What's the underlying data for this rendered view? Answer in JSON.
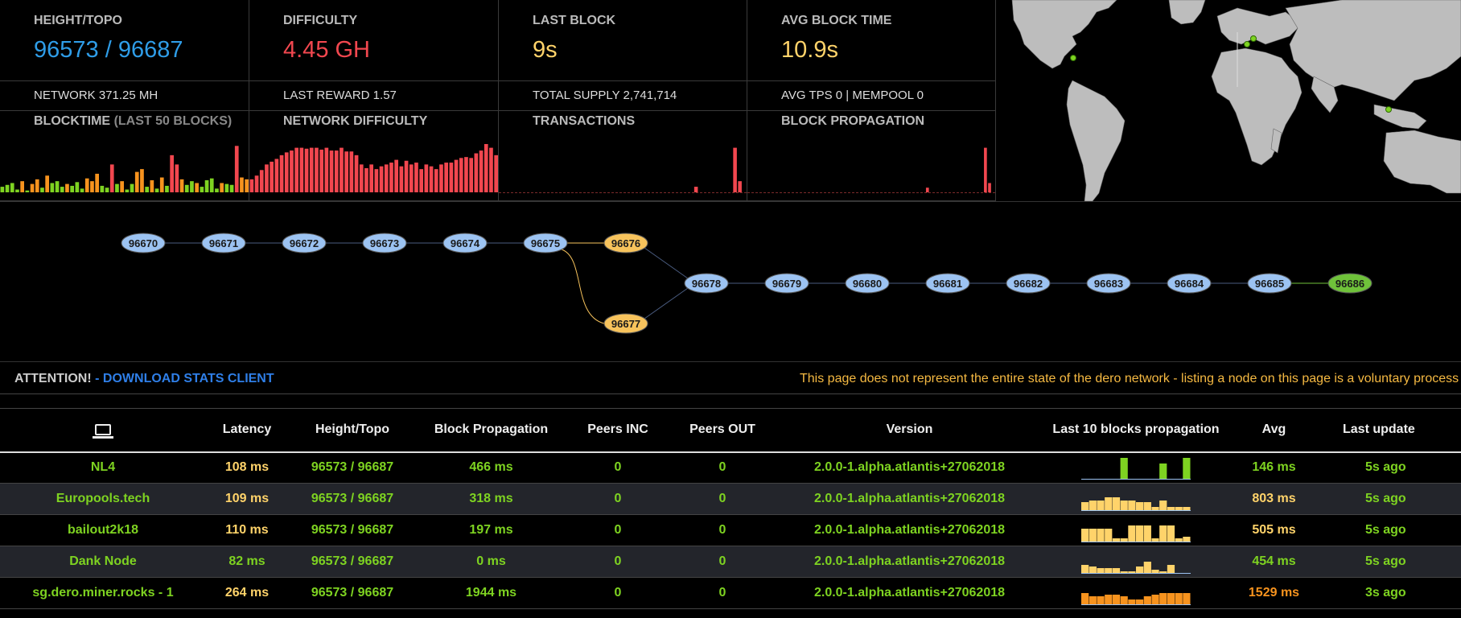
{
  "stats": {
    "height_topo": {
      "label": "HEIGHT/TOPO",
      "value": "96573 / 96687"
    },
    "difficulty": {
      "label": "DIFFICULTY",
      "value": "4.45 GH"
    },
    "last_block": {
      "label": "LAST BLOCK",
      "value": "9s"
    },
    "avg_block_time": {
      "label": "AVG BLOCK TIME",
      "value": "10.9s"
    }
  },
  "subs": {
    "network": "NETWORK 371.25 MH",
    "last_reward": "LAST REWARD 1.57",
    "total_supply": "TOTAL SUPPLY 2,741,714",
    "tps": "AVG TPS 0 | MEMPOOL 0"
  },
  "charts": {
    "blocktime": {
      "label": "BLOCKTIME",
      "sublabel": "(LAST 50 BLOCKS)"
    },
    "network_difficulty": {
      "label": "NETWORK DIFFICULTY"
    },
    "transactions": {
      "label": "TRANSACTIONS"
    },
    "block_propagation": {
      "label": "BLOCK PROPAGATION"
    }
  },
  "chart_data": [
    {
      "type": "bar",
      "title": "BLOCKTIME",
      "values": [
        6,
        8,
        10,
        3,
        12,
        2,
        9,
        14,
        5,
        18,
        10,
        12,
        6,
        9,
        7,
        11,
        4,
        15,
        12,
        20,
        7,
        5,
        30,
        9,
        12,
        3,
        9,
        22,
        25,
        6,
        13,
        4,
        16,
        7,
        40,
        30,
        14,
        8,
        12,
        10,
        6,
        13,
        15,
        4,
        10,
        9,
        8,
        50,
        16,
        14
      ],
      "colors": [
        "g",
        "g",
        "g",
        "g",
        "o",
        "g",
        "o",
        "o",
        "g",
        "o",
        "g",
        "g",
        "g",
        "o",
        "g",
        "g",
        "g",
        "o",
        "o",
        "o",
        "g",
        "g",
        "r",
        "g",
        "o",
        "g",
        "g",
        "o",
        "o",
        "g",
        "o",
        "g",
        "o",
        "g",
        "r",
        "r",
        "o",
        "g",
        "g",
        "o",
        "g",
        "g",
        "g",
        "g",
        "o",
        "g",
        "g",
        "r",
        "o",
        "o"
      ]
    },
    {
      "type": "bar",
      "title": "NETWORK DIFFICULTY",
      "values": [
        14,
        18,
        24,
        30,
        33,
        36,
        40,
        43,
        45,
        48,
        48,
        47,
        48,
        48,
        46,
        48,
        45,
        45,
        48,
        44,
        44,
        40,
        30,
        26,
        30,
        25,
        28,
        30,
        32,
        35,
        28,
        34,
        30,
        32,
        25,
        30,
        28,
        25,
        30,
        32,
        32,
        35,
        37,
        38,
        37,
        42,
        45,
        52,
        48,
        40
      ]
    },
    {
      "type": "bar",
      "title": "TRANSACTIONS",
      "values": [
        0,
        0,
        0,
        0,
        0,
        0,
        0,
        0,
        0,
        0,
        0,
        0,
        0,
        0,
        0,
        0,
        0,
        0,
        0,
        0,
        0,
        0,
        0,
        0,
        0,
        0,
        0,
        0,
        0,
        0,
        0,
        0,
        0,
        0,
        0,
        0,
        0,
        0,
        0,
        0,
        6,
        0,
        0,
        0,
        0,
        0,
        0,
        0,
        48,
        12,
        0
      ]
    },
    {
      "type": "bar",
      "title": "BLOCK PROPAGATION",
      "values": [
        0,
        0,
        0,
        0,
        0,
        0,
        0,
        0,
        0,
        0,
        0,
        0,
        0,
        0,
        0,
        0,
        0,
        0,
        0,
        0,
        0,
        0,
        0,
        0,
        0,
        0,
        0,
        0,
        0,
        0,
        0,
        0,
        0,
        0,
        0,
        0,
        0,
        0,
        0,
        0,
        0,
        0,
        0,
        5,
        0,
        0,
        0,
        0,
        0,
        0,
        0,
        0,
        0,
        0,
        0,
        0,
        0,
        48,
        10,
        0
      ]
    }
  ],
  "dag": {
    "row1": [
      "96670",
      "96671",
      "96672",
      "96673",
      "96674",
      "96675",
      "96676"
    ],
    "row2": [
      "96678",
      "96679",
      "96680",
      "96681",
      "96682",
      "96683",
      "96684",
      "96685",
      "96686"
    ],
    "side": "96677"
  },
  "attention": {
    "prefix": "ATTENTION!",
    "link": "- DOWNLOAD STATS CLIENT",
    "notice": "This page does not represent the entire state of the dero network - listing a node on this page is a voluntary process"
  },
  "table": {
    "headers": [
      "Latency",
      "Height/Topo",
      "Block Propagation",
      "Peers INC",
      "Peers OUT",
      "Version",
      "Last 10 blocks propagation",
      "Avg",
      "Last update"
    ],
    "rows": [
      {
        "name": "NL4",
        "latency": "108 ms",
        "height": "96573 / 96687",
        "prop": "466 ms",
        "pin": "0",
        "pout": "0",
        "version": "2.0.0-1.alpha.atlantis+27062018",
        "avg": "146 ms",
        "upd": "5s ago",
        "spark": [
          0,
          0,
          0,
          0,
          0,
          26,
          0,
          0,
          0,
          0,
          19,
          0,
          0,
          26
        ],
        "spark_color": "#7ed321",
        "lat_color": "yellow",
        "avg_color": "green"
      },
      {
        "name": "Europools.tech",
        "latency": "109 ms",
        "height": "96573 / 96687",
        "prop": "318 ms",
        "pin": "0",
        "pout": "0",
        "version": "2.0.0-1.alpha.atlantis+27062018",
        "avg": "803 ms",
        "upd": "5s ago",
        "spark": [
          10,
          12,
          12,
          16,
          16,
          12,
          12,
          10,
          10,
          4,
          12,
          4,
          4,
          4
        ],
        "spark_color": "#ffd36a",
        "lat_color": "yellow",
        "avg_color": "yellow"
      },
      {
        "name": "bailout2k18",
        "latency": "110 ms",
        "height": "96573 / 96687",
        "prop": "197 ms",
        "pin": "0",
        "pout": "0",
        "version": "2.0.0-1.alpha.atlantis+27062018",
        "avg": "505 ms",
        "upd": "5s ago",
        "spark": [
          16,
          16,
          16,
          16,
          4,
          4,
          20,
          20,
          20,
          4,
          20,
          20,
          4,
          6
        ],
        "spark_color": "#ffd36a",
        "lat_color": "yellow",
        "avg_color": "yellow"
      },
      {
        "name": "Dank Node",
        "latency": "82 ms",
        "height": "96573 / 96687",
        "prop": "0 ms",
        "pin": "0",
        "pout": "0",
        "version": "2.0.0-1.alpha.atlantis+27062018",
        "avg": "454 ms",
        "upd": "5s ago",
        "spark": [
          10,
          8,
          6,
          6,
          6,
          2,
          2,
          8,
          14,
          4,
          2,
          10,
          0,
          0
        ],
        "spark_color": "#ffd36a",
        "lat_color": "green",
        "avg_color": "green"
      },
      {
        "name": "sg.dero.miner.rocks - 1",
        "latency": "264 ms",
        "height": "96573 / 96687",
        "prop": "1944 ms",
        "pin": "0",
        "pout": "0",
        "version": "2.0.0-1.alpha.atlantis+27062018",
        "avg": "1529 ms",
        "upd": "3s ago",
        "spark": [
          14,
          10,
          10,
          12,
          12,
          10,
          6,
          6,
          10,
          12,
          14,
          14,
          14,
          14
        ],
        "spark_color": "#f7931e",
        "lat_color": "yellow",
        "avg_color": "orange"
      }
    ]
  },
  "colors": {
    "blue": "#2f9de8",
    "red": "#f2474f",
    "yellow": "#ffd36a",
    "green": "#7ed321",
    "orange": "#f7931e",
    "node_blue": "#9cc3f2",
    "node_yellow": "#f7c35c",
    "node_green": "#6fc23a"
  },
  "icons": {
    "computer": "laptop-icon"
  }
}
